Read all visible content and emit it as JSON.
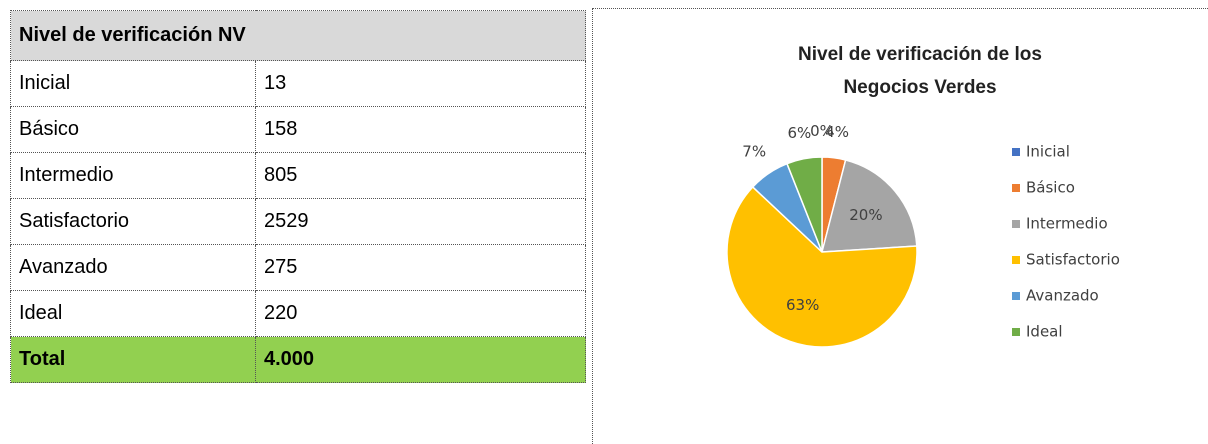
{
  "table": {
    "header": "Nivel de verificación NV",
    "rows": [
      [
        "Inicial",
        "13"
      ],
      [
        "Básico",
        "158"
      ],
      [
        "Intermedio",
        "805"
      ],
      [
        "Satisfactorio",
        "2529"
      ],
      [
        "Avanzado",
        "275"
      ],
      [
        "Ideal",
        "220"
      ]
    ],
    "total": [
      "Total",
      "4.000"
    ]
  },
  "chart_data": {
    "type": "pie",
    "title": "Nivel de verificación de los Negocios Verdes",
    "categories": [
      "Inicial",
      "Básico",
      "Intermedio",
      "Satisfactorio",
      "Avanzado",
      "Ideal"
    ],
    "values": [
      0,
      4,
      20,
      63,
      7,
      6
    ],
    "value_labels": [
      "0%",
      "4%",
      "20%",
      "63%",
      "7%",
      "6%"
    ],
    "colors": [
      "#4472c4",
      "#ed7d31",
      "#a5a5a5",
      "#ffc000",
      "#5b9bd5",
      "#70ad47"
    ],
    "legend": "right"
  }
}
